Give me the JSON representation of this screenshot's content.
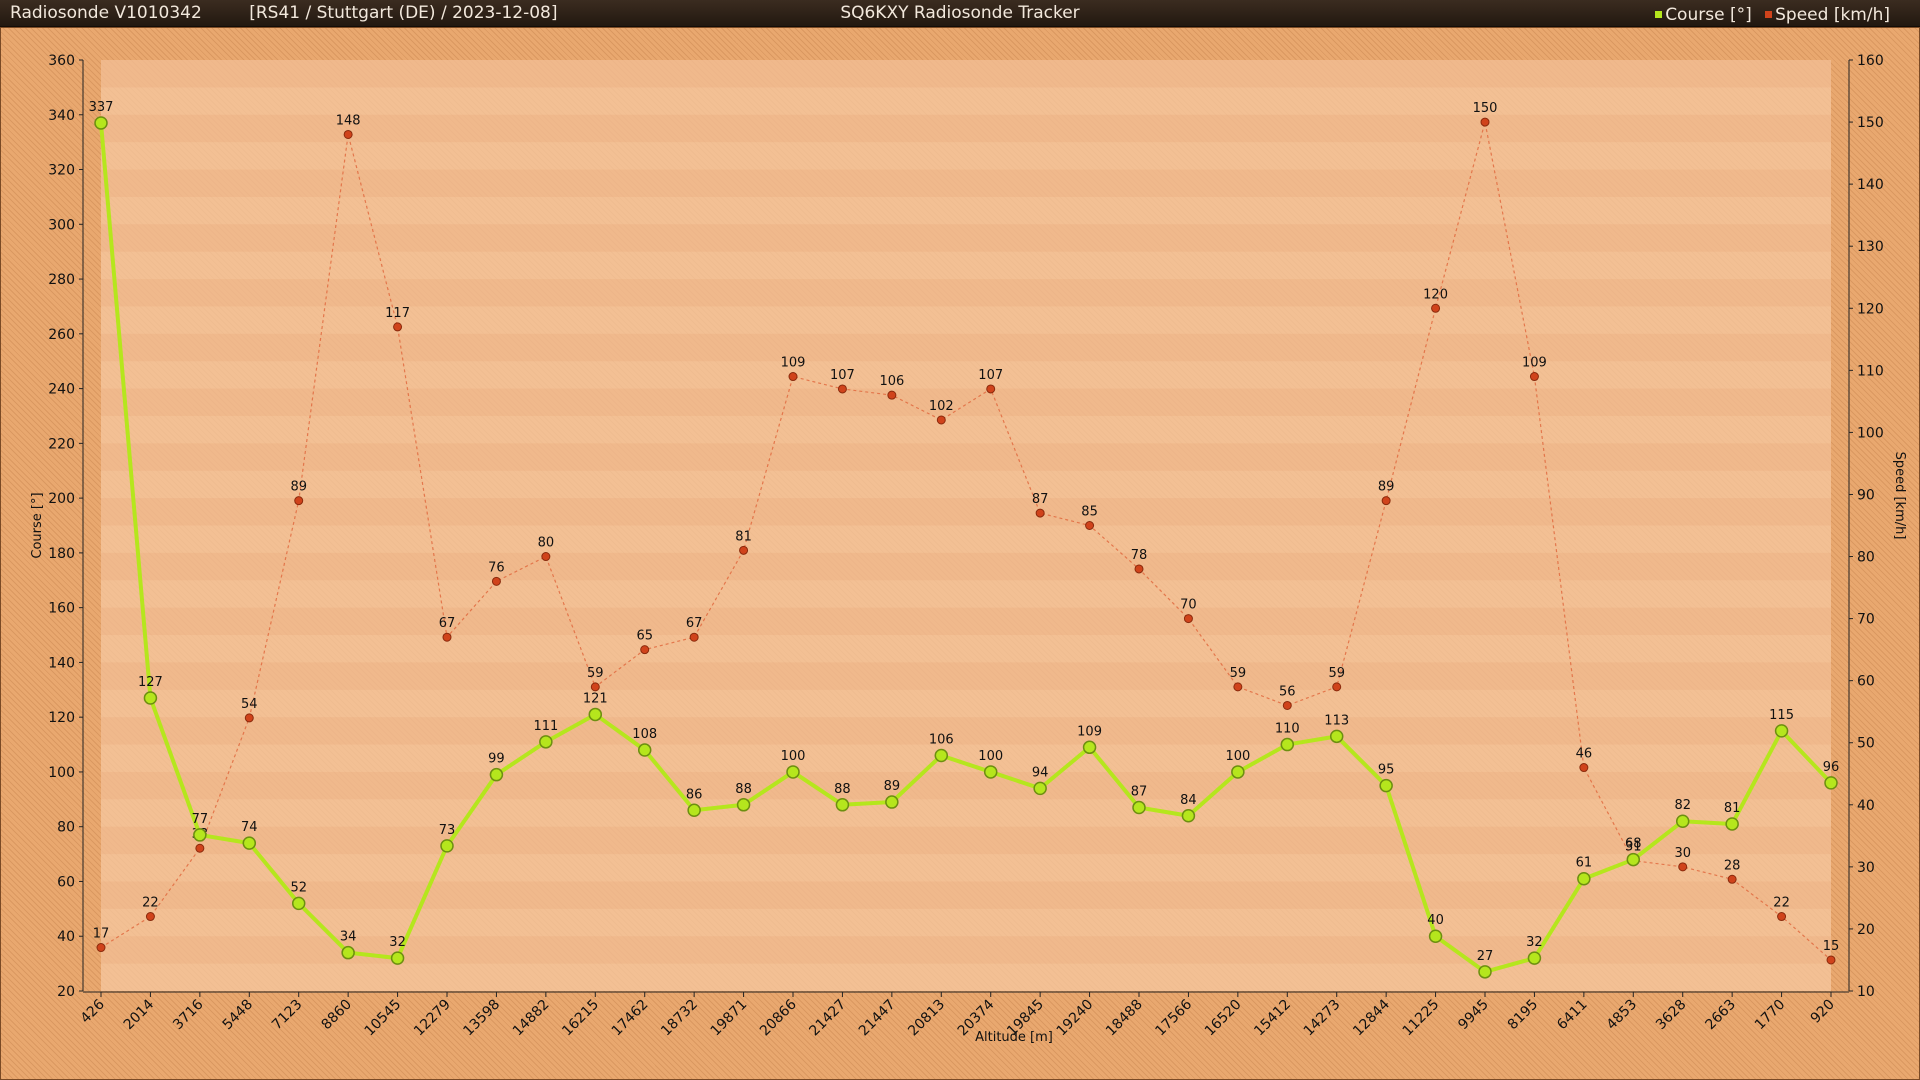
{
  "header": {
    "sonde": "Radiosonde V1010342",
    "info": "[RS41 / Stuttgart (DE) / 2023-12-08]",
    "app_title": "SQ6KXY Radiosonde Tracker"
  },
  "chart_data": {
    "type": "line",
    "xlabel": "Altitude [m]",
    "ylabel": "Course [°]",
    "y2label": "Speed [km/h]",
    "categories": [
      "426",
      "2014",
      "3716",
      "5448",
      "7123",
      "8860",
      "10545",
      "12279",
      "13598",
      "14882",
      "16215",
      "17462",
      "18732",
      "19871",
      "20866",
      "21427",
      "21447",
      "20813",
      "20374",
      "19845",
      "19240",
      "18488",
      "17566",
      "16520",
      "15412",
      "14273",
      "12844",
      "11225",
      "9945",
      "8195",
      "6411",
      "4853",
      "3628",
      "2663",
      "1770",
      "920"
    ],
    "ylim": [
      20,
      360
    ],
    "y_ticks": [
      "20",
      "40",
      "60",
      "80",
      "100",
      "120",
      "140",
      "160",
      "180",
      "200",
      "220",
      "240",
      "260",
      "280",
      "300",
      "320",
      "340",
      "360"
    ],
    "y2lim": [
      10,
      160
    ],
    "y2_ticks": [
      "10",
      "20",
      "30",
      "40",
      "50",
      "60",
      "70",
      "80",
      "90",
      "100",
      "110",
      "120",
      "130",
      "140",
      "150",
      "160"
    ],
    "legend_position": "top-right",
    "series": [
      {
        "name": "Course [°]",
        "axis": "left",
        "color": "#b5e61d",
        "values": [
          337,
          127,
          77,
          74,
          52,
          34,
          32,
          73,
          99,
          111,
          121,
          108,
          86,
          88,
          100,
          88,
          89,
          106,
          100,
          94,
          109,
          87,
          84,
          100,
          110,
          113,
          95,
          40,
          27,
          32,
          61,
          68,
          82,
          81,
          115,
          96
        ],
        "labels": [
          "337",
          "127",
          "77",
          "74",
          "52",
          "34",
          "32",
          "73",
          "99",
          "111",
          "121",
          "108",
          "86",
          "88",
          "100",
          "88",
          "89",
          "106",
          "100",
          "94",
          "109",
          "87",
          "84",
          "100",
          "110",
          "113",
          "95",
          "40",
          "27",
          "32",
          "61",
          "68",
          "82",
          "81",
          "115",
          "96"
        ]
      },
      {
        "name": "Speed [km/h]",
        "axis": "right",
        "color": "#d0431b",
        "values": [
          17,
          22,
          33,
          54,
          89,
          148,
          117,
          67,
          76,
          80,
          59,
          65,
          67,
          81,
          109,
          107,
          106,
          102,
          107,
          87,
          85,
          78,
          70,
          59,
          56,
          59,
          89,
          120,
          150,
          109,
          46,
          31,
          30,
          28,
          22,
          15
        ],
        "labels": [
          "17",
          "22",
          "33",
          "54",
          "89",
          "148",
          "117",
          "67",
          "76",
          "80",
          "59",
          "65",
          "67",
          "81",
          "109",
          "107",
          "106",
          "102",
          "107",
          "87",
          "85",
          "78",
          "70",
          "59",
          "56",
          "59",
          "89",
          "120",
          "150",
          "109",
          "46",
          "31",
          "30",
          "28",
          "22",
          "15"
        ]
      }
    ]
  }
}
